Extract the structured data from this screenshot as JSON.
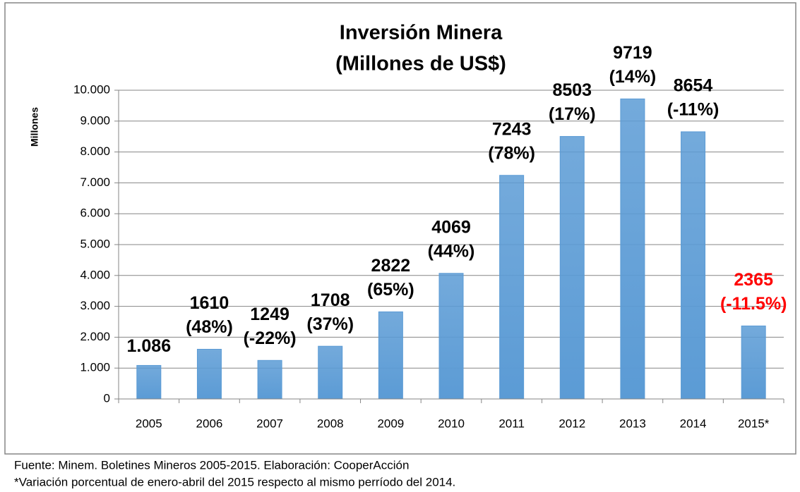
{
  "chart_data": {
    "type": "bar",
    "title": [
      "Inversión Minera",
      "(Millones de US$)"
    ],
    "ylabel": "Millones",
    "categories": [
      "2005",
      "2006",
      "2007",
      "2008",
      "2009",
      "2010",
      "2011",
      "2012",
      "2013",
      "2014",
      "2015*"
    ],
    "values": [
      1086,
      1610,
      1249,
      1708,
      2822,
      4069,
      7243,
      8503,
      9719,
      8654,
      2365
    ],
    "value_labels": [
      "1.086",
      "1610",
      "1249",
      "1708",
      "2822",
      "4069",
      "7243",
      "8503",
      "9719",
      "8654",
      "2365"
    ],
    "annotations": [
      null,
      "(48%)",
      "(-22%)",
      "(37%)",
      "(65%)",
      "(44%)",
      "(78%)",
      "(17%)",
      "(14%)",
      "(-11%)",
      "(-11.5%)"
    ],
    "label_colors": [
      "#000000",
      "#000000",
      "#000000",
      "#000000",
      "#000000",
      "#000000",
      "#000000",
      "#000000",
      "#000000",
      "#000000",
      "#ff0000"
    ],
    "color": "#5b9bd5",
    "ylim": [
      0,
      10000
    ],
    "yticks": [
      0,
      {
        "value": 1000,
        "label": "1.000"
      },
      {
        "value": 2000,
        "label": "2.000"
      },
      {
        "value": 3000,
        "label": "3.000"
      },
      {
        "value": 4000,
        "label": "4.000"
      },
      {
        "value": 5000,
        "label": "5.000"
      },
      {
        "value": 6000,
        "label": "6.000"
      },
      {
        "value": 7000,
        "label": "7.000"
      },
      {
        "value": 8000,
        "label": "8.000"
      },
      {
        "value": 9000,
        "label": "9.000"
      },
      {
        "value": 10000,
        "label": "10.000"
      }
    ],
    "grid": true,
    "notes": [
      "Fuente: Minem. Boletines Mineros  2005-2015. Elaboración: CooperAcción",
      "*Variación porcentual de enero-abril del 2015 respecto al mismo perríodo del 2014."
    ]
  }
}
